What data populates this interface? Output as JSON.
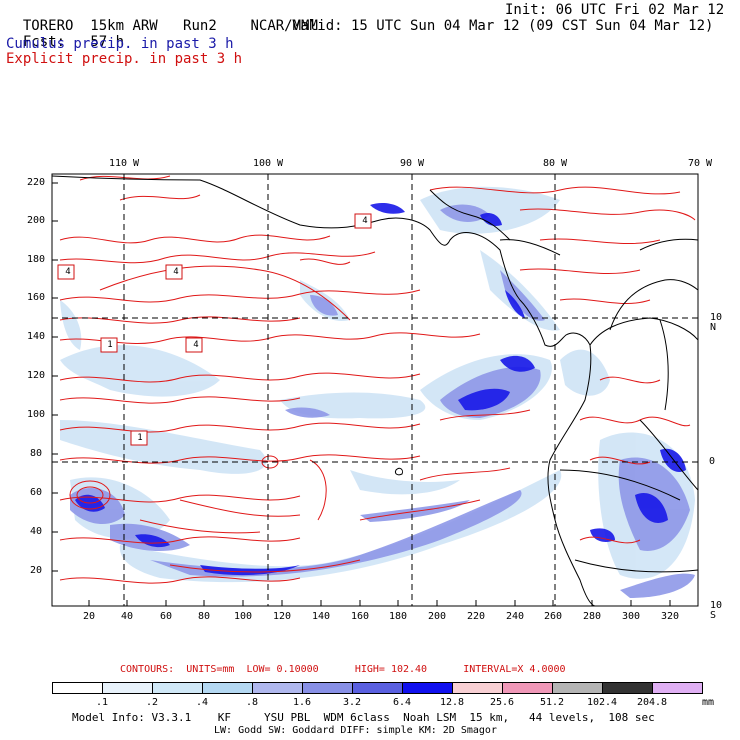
{
  "header": {
    "model": "TORERO",
    "resolution": "15km ARW",
    "run": "Run2",
    "org": "NCAR/MMM",
    "init": "Init: 06 UTC Fri 02 Mar 12",
    "fcst_label": "Fcst:",
    "fcst_value": "57 h",
    "valid": "Valid: 15 UTC Sun 04 Mar 12 (09 CST Sun 04 Mar 12)",
    "field1": "Cumulus precip. in past 3 h",
    "field2": "Explicit precip. in past 3 h"
  },
  "map": {
    "lon_labels": [
      "110 W",
      "100 W",
      "90 W",
      "80 W",
      "70 W"
    ],
    "lat_labels": [
      "10 N",
      "0",
      "10 S"
    ],
    "y_ticks": [
      "220",
      "200",
      "180",
      "160",
      "140",
      "120",
      "100",
      "80",
      "60",
      "40",
      "20"
    ],
    "x_ticks": [
      "20",
      "40",
      "60",
      "80",
      "100",
      "120",
      "140",
      "160",
      "180",
      "200",
      "220",
      "240",
      "260",
      "280",
      "300",
      "320"
    ],
    "contour_labels": [
      "4",
      "4",
      "4",
      "1",
      "4",
      "1"
    ]
  },
  "contours_line": {
    "title": "CONTOURS:",
    "units": "UNITS=mm",
    "low": "LOW= 0.10000",
    "high": "HIGH= 102.40",
    "interval": "INTERVAL=X 4.0000"
  },
  "colorbar": {
    "labels": [
      ".1",
      ".2",
      ".4",
      ".8",
      "1.6",
      "3.2",
      "6.4",
      "12.8",
      "25.6",
      "51.2",
      "102.4",
      "204.8"
    ],
    "unit": "mm",
    "colors": [
      "#ffffff",
      "#e8f2fb",
      "#d0e8f7",
      "#b4d8f2",
      "#b0b8ee",
      "#8890e6",
      "#5a60e0",
      "#1010ee",
      "#f8d0d4",
      "#f098b8",
      "#b4b4b4",
      "#333333",
      "#e0b0f4"
    ]
  },
  "footer": {
    "line1": "Model Info: V3.3.1    KF     YSU PBL  WDM 6class  Noah LSM  15 km,   44 levels,  108 sec",
    "line2": "LW: Godd SW: Goddard DIFF: simple KM: 2D Smagor"
  }
}
